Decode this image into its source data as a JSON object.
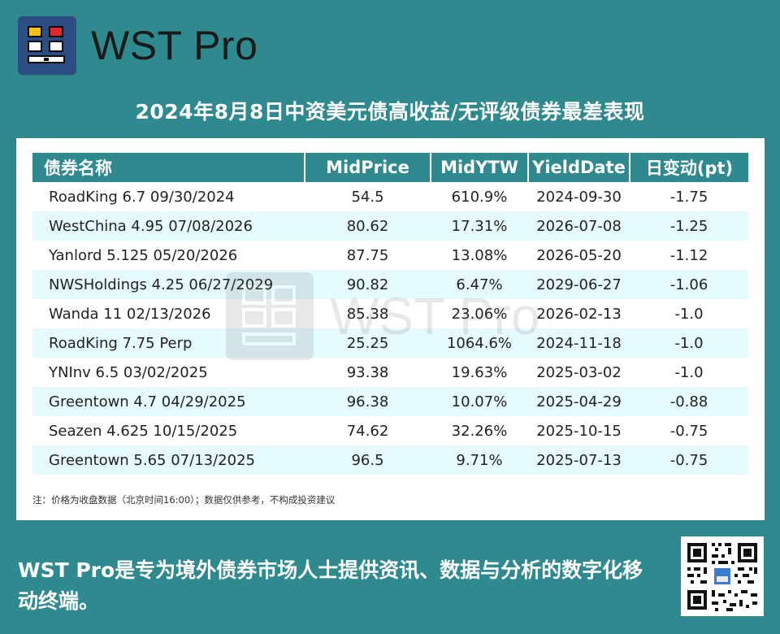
{
  "brand": {
    "name": "WST Pro"
  },
  "title": "2024年8月8日中资美元债高收益/无评级债券最差表现",
  "table": {
    "headers": [
      "债券名称",
      "MidPrice",
      "MidYTW",
      "YieldDate",
      "日变动(pt)"
    ],
    "rows": [
      [
        "RoadKing 6.7 09/30/2024",
        "54.5",
        "610.9%",
        "2024-09-30",
        "-1.75"
      ],
      [
        "WestChina 4.95 07/08/2026",
        "80.62",
        "17.31%",
        "2026-07-08",
        "-1.25"
      ],
      [
        "Yanlord 5.125 05/20/2026",
        "87.75",
        "13.08%",
        "2026-05-20",
        "-1.12"
      ],
      [
        "NWSHoldings 4.25 06/27/2029",
        "90.82",
        "6.47%",
        "2029-06-27",
        "-1.06"
      ],
      [
        "Wanda 11 02/13/2026",
        "85.38",
        "23.06%",
        "2026-02-13",
        "-1.0"
      ],
      [
        "RoadKing 7.75 Perp",
        "25.25",
        "1064.6%",
        "2024-11-18",
        "-1.0"
      ],
      [
        "YNInv 6.5 03/02/2025",
        "93.38",
        "19.63%",
        "2025-03-02",
        "-1.0"
      ],
      [
        "Greentown 4.7 04/29/2025",
        "96.38",
        "10.07%",
        "2025-04-29",
        "-0.88"
      ],
      [
        "Seazen 4.625 10/15/2025",
        "74.62",
        "32.26%",
        "2025-10-15",
        "-0.75"
      ],
      [
        "Greentown 5.65 07/13/2025",
        "96.5",
        "9.71%",
        "2025-07-13",
        "-0.75"
      ]
    ]
  },
  "footnote": "注：价格为收盘数据（北京时间16:00）；数据仅供参考，不构成投资建议",
  "slogan": "WST Pro是专为境外债券市场人士提供资讯、数据与分析的数字化移动终端。",
  "watermark": "WST Pro",
  "colors": {
    "background": "#2e8a8f",
    "header_bg": "#2e8a8f",
    "row_alt": "#e6fbfd",
    "logo_tile": "#2b4d82"
  },
  "icons": {
    "logo": "wst-pro-logo-icon",
    "qr": "qr-code-icon"
  }
}
